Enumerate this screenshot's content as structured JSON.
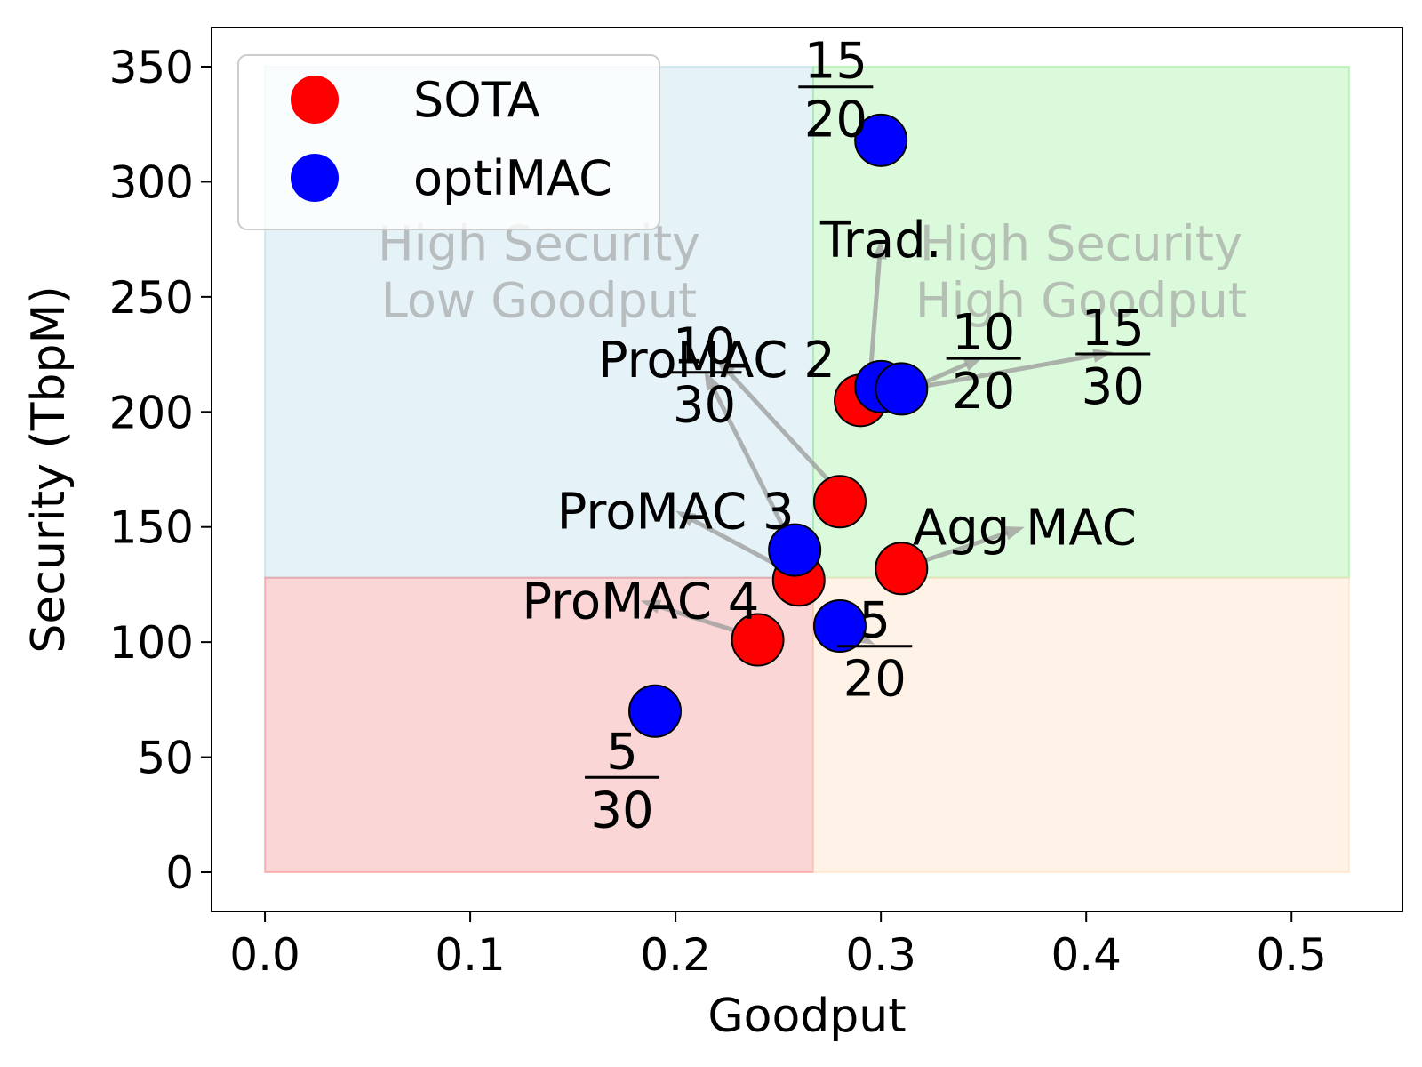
{
  "chart_data": {
    "type": "scatter",
    "xlabel": "Goodput",
    "ylabel": "Security (TbpM)",
    "xlim": [
      -0.026,
      0.554
    ],
    "ylim": [
      -17,
      367
    ],
    "x_ticks": [
      0.0,
      0.1,
      0.2,
      0.3,
      0.4,
      0.5
    ],
    "x_tick_labels": [
      "0.0",
      "0.1",
      "0.2",
      "0.3",
      "0.4",
      "0.5"
    ],
    "y_ticks": [
      0,
      50,
      100,
      150,
      200,
      250,
      300,
      350
    ],
    "y_tick_labels": [
      "0",
      "50",
      "100",
      "150",
      "200",
      "250",
      "300",
      "350"
    ],
    "legend_position": "top-left",
    "regions": [
      {
        "x": [
          0.0,
          0.267
        ],
        "y": [
          128,
          350
        ],
        "color": "#add8e6",
        "lines": [
          "High Security",
          "Low Goodput"
        ]
      },
      {
        "x": [
          0.267,
          0.528
        ],
        "y": [
          128,
          350
        ],
        "color": "#90ee90",
        "lines": [
          "High Security",
          "High Goodput"
        ]
      },
      {
        "x": [
          0.0,
          0.267
        ],
        "y": [
          0,
          128
        ],
        "color": "#f08080",
        "lines": []
      },
      {
        "x": [
          0.267,
          0.528
        ],
        "y": [
          0,
          128
        ],
        "color": "#ffdab9",
        "lines": []
      }
    ],
    "series": [
      {
        "name": "SOTA",
        "color": "#ff0000",
        "points": [
          {
            "x": 0.29,
            "y": 205,
            "label": "Trad."
          },
          {
            "x": 0.28,
            "y": 161,
            "label": "ProMAC 2"
          },
          {
            "x": 0.26,
            "y": 127,
            "label": "ProMAC 3"
          },
          {
            "x": 0.24,
            "y": 101,
            "label": "ProMAC 4"
          },
          {
            "x": 0.31,
            "y": 132,
            "label": "Agg MAC"
          }
        ]
      },
      {
        "name": "optiMAC",
        "color": "#0000ff",
        "points": [
          {
            "x": 0.3,
            "y": 318,
            "label": {
              "num": "15",
              "den": "20"
            }
          },
          {
            "x": 0.3,
            "y": 211,
            "label": {
              "num": "10",
              "den": "20"
            }
          },
          {
            "x": 0.31,
            "y": 210,
            "label": {
              "num": "15",
              "den": "30"
            }
          },
          {
            "x": 0.258,
            "y": 140,
            "label": {
              "num": "10",
              "den": "30"
            }
          },
          {
            "x": 0.28,
            "y": 107,
            "label": {
              "num": "5",
              "den": "20"
            }
          },
          {
            "x": 0.19,
            "y": 70,
            "label": {
              "num": "5",
              "den": "30"
            }
          }
        ]
      }
    ],
    "annotations": [
      {
        "text": "Trad.",
        "at": [
          0.3,
          275
        ],
        "point": [
          0.294,
          207
        ],
        "arrow": true
      },
      {
        "text": "ProMAC 2",
        "at": [
          0.22,
          223
        ],
        "point": [
          0.283,
          162
        ],
        "arrow": true
      },
      {
        "text": "ProMAC 3",
        "at": [
          0.2,
          157
        ],
        "point": [
          0.261,
          128
        ],
        "arrow": true
      },
      {
        "text": "ProMAC 4",
        "at": [
          0.183,
          118
        ],
        "point": [
          0.236,
          103
        ],
        "arrow": true
      },
      {
        "text": "Agg MAC",
        "at": [
          0.37,
          150
        ],
        "point": [
          0.313,
          133
        ],
        "arrow": true
      },
      {
        "frac": [
          "15",
          "20"
        ],
        "at": [
          0.278,
          342
        ],
        "point": null,
        "arrow": false
      },
      {
        "frac": [
          "10",
          "20"
        ],
        "at": [
          0.35,
          224
        ],
        "point": [
          0.314,
          210
        ],
        "arrow": true
      },
      {
        "frac": [
          "15",
          "30"
        ],
        "at": [
          0.413,
          226
        ],
        "point": [
          0.32,
          211
        ],
        "arrow": true
      },
      {
        "frac": [
          "10",
          "30"
        ],
        "at": [
          0.214,
          218
        ],
        "point": [
          0.258,
          140
        ],
        "arrow": true
      },
      {
        "frac": [
          "5",
          "20"
        ],
        "at": [
          0.297,
          99
        ],
        "point": [
          0.281,
          106
        ],
        "arrow": true
      },
      {
        "frac": [
          "5",
          "30"
        ],
        "at": [
          0.174,
          42
        ],
        "point": null,
        "arrow": false
      }
    ]
  }
}
